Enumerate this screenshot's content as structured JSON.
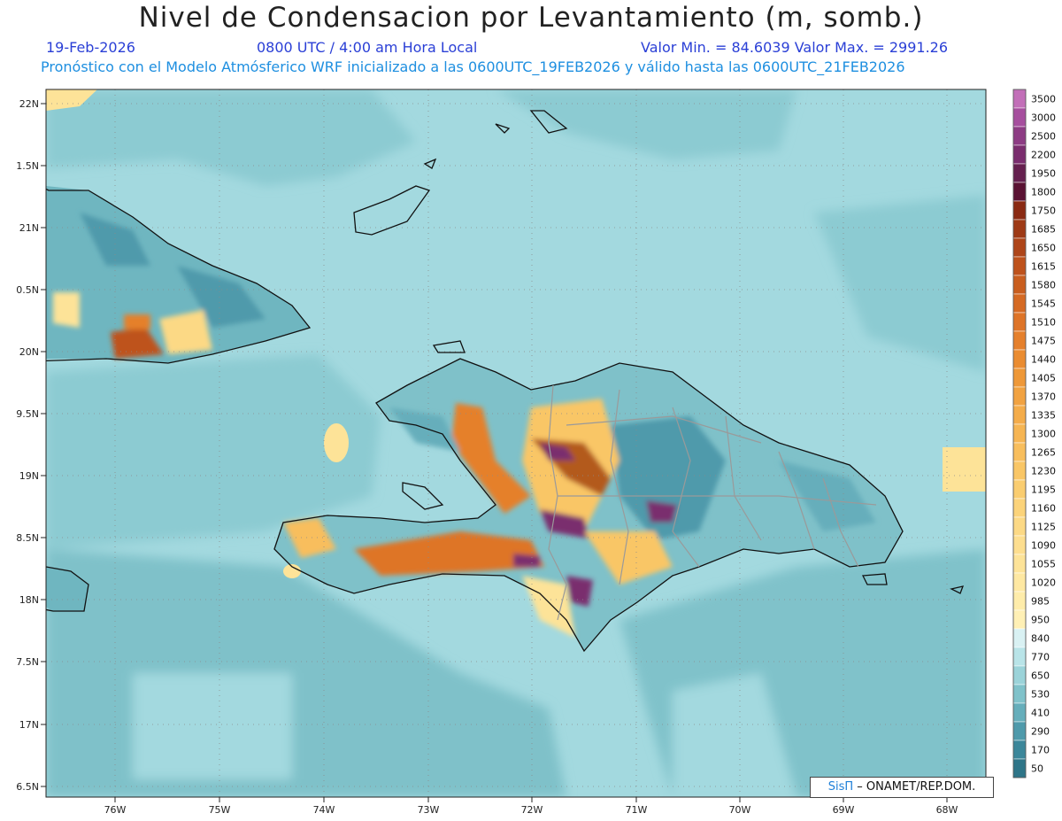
{
  "header": {
    "title": "Nivel de Condensacion por Levantamiento (m, somb.)",
    "date": "19-Feb-2026",
    "time": "0800 UTC / 4:00 am Hora Local",
    "min_max": "Valor Min. = 84.6039  Valor Max. = 2991.26",
    "model_line": "Pronóstico con el Modelo Atmósferico WRF inicializado a las 0600UTC_19FEB2026 y válido hasta las  0600UTC_21FEB2026"
  },
  "map": {
    "lat_labels": [
      "22N",
      "1.5N",
      "21N",
      "0.5N",
      "20N",
      "9.5N",
      "19N",
      "8.5N",
      "18N",
      "7.5N",
      "17N",
      "6.5N"
    ],
    "lon_labels": [
      "76W",
      "75W",
      "74W",
      "73W",
      "72W",
      "71W",
      "70W",
      "69W",
      "68W"
    ],
    "colors": {
      "sea": "#a3d9df",
      "low": "#7fc1c9",
      "mid": "#5eaab6",
      "deep": "#3f8b9b",
      "yellow": "#ffe680",
      "orange": "#e8952b",
      "brown": "#b35a1f",
      "purple": "#7d2a68",
      "coast": "#111111",
      "border": "#999999"
    }
  },
  "colorbar": {
    "labels": [
      "3500",
      "3000",
      "2500",
      "2200",
      "1950",
      "1800",
      "1750",
      "1685",
      "1650",
      "1615",
      "1580",
      "1545",
      "1510",
      "1475",
      "1440",
      "1405",
      "1370",
      "1335",
      "1300",
      "1265",
      "1230",
      "1195",
      "1160",
      "1125",
      "1090",
      "1055",
      "1020",
      "985",
      "950",
      "840",
      "770",
      "650",
      "530",
      "410",
      "290",
      "170",
      "50"
    ],
    "colors": [
      "#c26fb8",
      "#a64f9e",
      "#8d3c84",
      "#7a2d6e",
      "#65204f",
      "#5a1233",
      "#8a2a13",
      "#9e3a16",
      "#ae4519",
      "#be521c",
      "#c95e1f",
      "#d56a24",
      "#de7428",
      "#e5802c",
      "#ea8c31",
      "#ee9838",
      "#f1a241",
      "#f4ac4a",
      "#f6b553",
      "#f8be5d",
      "#f9c666",
      "#facd70",
      "#fbd37a",
      "#fcd985",
      "#fdde8f",
      "#fde398",
      "#fee8a2",
      "#feecaa",
      "#fff0b5",
      "#d9f1f3",
      "#b9e4e8",
      "#9bd3d9",
      "#80c2ca",
      "#66aebb",
      "#4f9aab",
      "#3c879a",
      "#2e7588"
    ]
  },
  "credit": {
    "brand": "SisΠ",
    "text": "– ONAMET/REP.DOM."
  }
}
